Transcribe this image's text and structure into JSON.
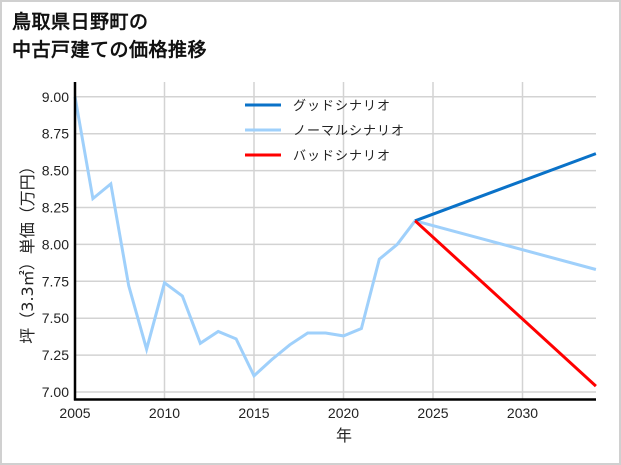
{
  "title": {
    "line1": "鳥取県日野町の",
    "line2": "中古戸建ての価格推移"
  },
  "chart_data": {
    "type": "line",
    "title": "鳥取県日野町の中古戸建ての価格推移",
    "xlabel": "年",
    "ylabel": "坪（3.3㎡）単価（万円）",
    "xlim": [
      2005,
      2034.1
    ],
    "ylim": [
      6.96,
      9.1
    ],
    "x_ticks": [
      2005,
      2010,
      2015,
      2020,
      2025,
      2030
    ],
    "y_ticks": [
      7.0,
      7.25,
      7.5,
      7.75,
      8.0,
      8.25,
      8.5,
      8.75,
      9.0
    ],
    "y_tick_labels": [
      "7.00",
      "7.25",
      "7.50",
      "7.75",
      "8.00",
      "8.25",
      "8.50",
      "8.75",
      "9.00"
    ],
    "grid": true,
    "legend_position": "upper center",
    "series": [
      {
        "name": "グッドシナリオ",
        "color": "#0a72c8",
        "x": [
          2024,
          2034.1
        ],
        "y": [
          8.16,
          8.615
        ]
      },
      {
        "name": "ノーマルシナリオ",
        "color": "#9fd0fb",
        "x": [
          2005,
          2006,
          2007,
          2008,
          2009,
          2010,
          2011,
          2012,
          2013,
          2014,
          2015,
          2016,
          2017,
          2018,
          2019,
          2020,
          2021,
          2022,
          2023,
          2024,
          2034.1
        ],
        "y": [
          9.0,
          8.31,
          8.41,
          7.72,
          7.29,
          7.74,
          7.65,
          7.33,
          7.41,
          7.36,
          7.11,
          7.22,
          7.32,
          7.4,
          7.4,
          7.38,
          7.43,
          7.9,
          8.0,
          8.16,
          7.83
        ]
      },
      {
        "name": "バッドシナリオ",
        "color": "#ff0000",
        "x": [
          2024,
          2034.1
        ],
        "y": [
          8.16,
          7.04
        ]
      }
    ]
  },
  "legend": {
    "items": [
      {
        "label": "グッドシナリオ",
        "color": "#0a72c8"
      },
      {
        "label": "ノーマルシナリオ",
        "color": "#9fd0fb"
      },
      {
        "label": "バッドシナリオ",
        "color": "#ff0000"
      }
    ]
  }
}
